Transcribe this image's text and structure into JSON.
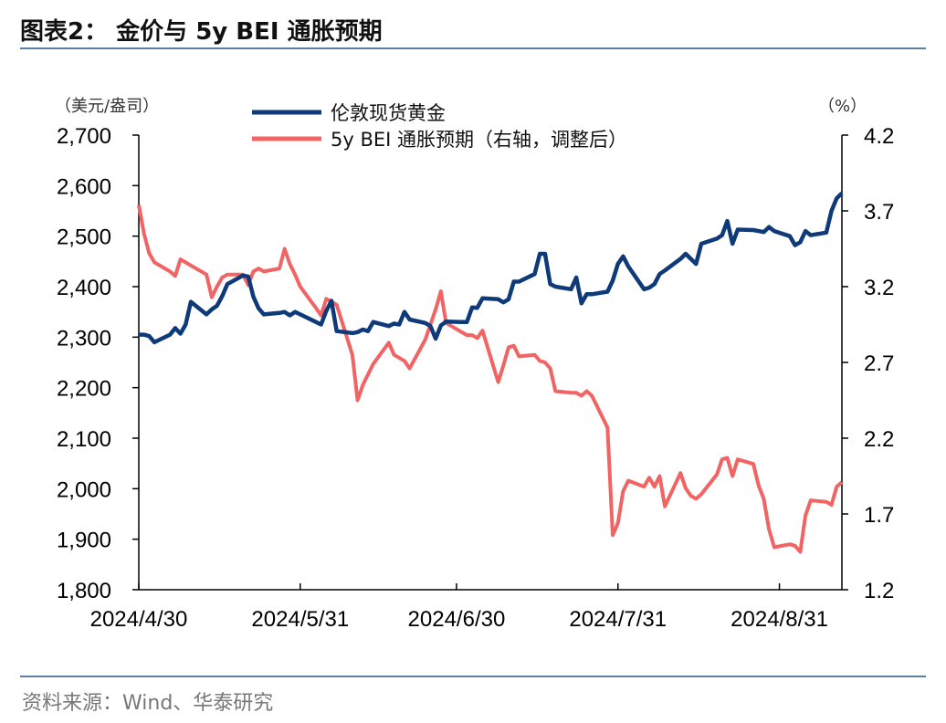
{
  "title": "图表2： 金价与 5y BEI 通胀预期",
  "source": "资料来源：Wind、华泰研究",
  "chart_data": {
    "type": "line",
    "left_unit": "（美元/盎司）",
    "right_unit": "（%）",
    "left_ylim": [
      1800,
      2700
    ],
    "right_ylim": [
      1.2,
      4.2
    ],
    "left_ticks": [
      "2,700",
      "2,600",
      "2,500",
      "2,400",
      "2,300",
      "2,200",
      "2,100",
      "2,000",
      "1,900",
      "1,800"
    ],
    "right_ticks": [
      "4.2",
      "3.7",
      "3.2",
      "2.7",
      "2.2",
      "1.7",
      "1.2"
    ],
    "x_range": [
      "2024-04-30",
      "2024-09-12"
    ],
    "x_ticks": [
      "2024/4/30",
      "2024/5/31",
      "2024/6/30",
      "2024/7/31",
      "2024/8/31"
    ],
    "grid": false,
    "legend_position": "top-center",
    "series": [
      {
        "name": "伦敦现货黄金",
        "axis": "left",
        "color": "#0e3a7a",
        "x": [
          "2024-04-30",
          "2024-05-01",
          "2024-05-02",
          "2024-05-03",
          "2024-05-06",
          "2024-05-07",
          "2024-05-08",
          "2024-05-09",
          "2024-05-10",
          "2024-05-13",
          "2024-05-14",
          "2024-05-15",
          "2024-05-16",
          "2024-05-17",
          "2024-05-20",
          "2024-05-21",
          "2024-05-22",
          "2024-05-23",
          "2024-05-24",
          "2024-05-27",
          "2024-05-28",
          "2024-05-29",
          "2024-05-30",
          "2024-05-31",
          "2024-06-03",
          "2024-06-04",
          "2024-06-05",
          "2024-06-06",
          "2024-06-07",
          "2024-06-10",
          "2024-06-11",
          "2024-06-12",
          "2024-06-13",
          "2024-06-14",
          "2024-06-17",
          "2024-06-18",
          "2024-06-19",
          "2024-06-20",
          "2024-06-21",
          "2024-06-24",
          "2024-06-25",
          "2024-06-26",
          "2024-06-27",
          "2024-06-28",
          "2024-07-01",
          "2024-07-02",
          "2024-07-03",
          "2024-07-04",
          "2024-07-05",
          "2024-07-08",
          "2024-07-09",
          "2024-07-10",
          "2024-07-11",
          "2024-07-12",
          "2024-07-15",
          "2024-07-16",
          "2024-07-17",
          "2024-07-18",
          "2024-07-19",
          "2024-07-22",
          "2024-07-23",
          "2024-07-24",
          "2024-07-25",
          "2024-07-26",
          "2024-07-29",
          "2024-07-30",
          "2024-07-31",
          "2024-08-01",
          "2024-08-02",
          "2024-08-05",
          "2024-08-06",
          "2024-08-07",
          "2024-08-08",
          "2024-08-09",
          "2024-08-12",
          "2024-08-13",
          "2024-08-14",
          "2024-08-15",
          "2024-08-16",
          "2024-08-19",
          "2024-08-20",
          "2024-08-21",
          "2024-08-22",
          "2024-08-23",
          "2024-08-26",
          "2024-08-27",
          "2024-08-28",
          "2024-08-29",
          "2024-08-30",
          "2024-09-02",
          "2024-09-03",
          "2024-09-04",
          "2024-09-05",
          "2024-09-06",
          "2024-09-09",
          "2024-09-10",
          "2024-09-11",
          "2024-09-12"
        ],
        "values": [
          2305,
          2305,
          2302,
          2290,
          2305,
          2318,
          2307,
          2325,
          2370,
          2345,
          2355,
          2362,
          2381,
          2405,
          2422,
          2420,
          2380,
          2357,
          2345,
          2348,
          2350,
          2343,
          2350,
          2345,
          2330,
          2325,
          2352,
          2372,
          2312,
          2308,
          2310,
          2315,
          2312,
          2330,
          2322,
          2327,
          2325,
          2350,
          2335,
          2328,
          2322,
          2297,
          2323,
          2331,
          2330,
          2330,
          2359,
          2358,
          2377,
          2375,
          2369,
          2375,
          2410,
          2410,
          2425,
          2465,
          2465,
          2405,
          2400,
          2395,
          2418,
          2367,
          2385,
          2385,
          2390,
          2412,
          2445,
          2460,
          2440,
          2395,
          2398,
          2405,
          2425,
          2432,
          2455,
          2465,
          2455,
          2445,
          2485,
          2495,
          2502,
          2530,
          2485,
          2513,
          2512,
          2510,
          2508,
          2518,
          2510,
          2500,
          2482,
          2488,
          2510,
          2502,
          2507,
          2550,
          2575,
          2585
        ]
      },
      {
        "name": "5y BEI 通胀预期（右轴，调整后）",
        "axis": "right",
        "color": "#f26464",
        "x": [
          "2024-04-30",
          "2024-05-01",
          "2024-05-02",
          "2024-05-03",
          "2024-05-06",
          "2024-05-07",
          "2024-05-08",
          "2024-05-09",
          "2024-05-10",
          "2024-05-13",
          "2024-05-14",
          "2024-05-15",
          "2024-05-16",
          "2024-05-17",
          "2024-05-20",
          "2024-05-21",
          "2024-05-22",
          "2024-05-23",
          "2024-05-24",
          "2024-05-27",
          "2024-05-28",
          "2024-05-29",
          "2024-05-30",
          "2024-05-31",
          "2024-06-03",
          "2024-06-04",
          "2024-06-05",
          "2024-06-06",
          "2024-06-07",
          "2024-06-10",
          "2024-06-11",
          "2024-06-12",
          "2024-06-13",
          "2024-06-14",
          "2024-06-17",
          "2024-06-18",
          "2024-06-19",
          "2024-06-20",
          "2024-06-21",
          "2024-06-24",
          "2024-06-25",
          "2024-06-26",
          "2024-06-27",
          "2024-06-28",
          "2024-07-01",
          "2024-07-02",
          "2024-07-03",
          "2024-07-04",
          "2024-07-05",
          "2024-07-08",
          "2024-07-09",
          "2024-07-10",
          "2024-07-11",
          "2024-07-12",
          "2024-07-15",
          "2024-07-16",
          "2024-07-17",
          "2024-07-18",
          "2024-07-19",
          "2024-07-22",
          "2024-07-23",
          "2024-07-24",
          "2024-07-25",
          "2024-07-26",
          "2024-07-29",
          "2024-07-30",
          "2024-07-31",
          "2024-08-01",
          "2024-08-02",
          "2024-08-05",
          "2024-08-06",
          "2024-08-07",
          "2024-08-08",
          "2024-08-09",
          "2024-08-12",
          "2024-08-13",
          "2024-08-14",
          "2024-08-15",
          "2024-08-16",
          "2024-08-19",
          "2024-08-20",
          "2024-08-21",
          "2024-08-22",
          "2024-08-23",
          "2024-08-26",
          "2024-08-27",
          "2024-08-28",
          "2024-08-29",
          "2024-08-30",
          "2024-09-02",
          "2024-09-03",
          "2024-09-04",
          "2024-09-05",
          "2024-09-06",
          "2024-09-09",
          "2024-09-10",
          "2024-09-11",
          "2024-09-12"
        ],
        "values": [
          3.74,
          3.55,
          3.42,
          3.36,
          3.3,
          3.27,
          3.38,
          3.36,
          3.34,
          3.28,
          3.13,
          3.2,
          3.26,
          3.28,
          3.28,
          3.21,
          3.3,
          3.32,
          3.3,
          3.32,
          3.45,
          3.35,
          3.28,
          3.2,
          3.06,
          3.01,
          3.12,
          3.1,
          3.08,
          2.75,
          2.45,
          2.55,
          2.62,
          2.69,
          2.83,
          2.75,
          2.73,
          2.71,
          2.66,
          2.85,
          2.95,
          3.05,
          3.17,
          2.96,
          2.9,
          2.88,
          2.88,
          2.86,
          2.91,
          2.57,
          2.68,
          2.8,
          2.81,
          2.74,
          2.75,
          2.71,
          2.7,
          2.66,
          2.51,
          2.5,
          2.5,
          2.48,
          2.51,
          2.48,
          2.27,
          1.56,
          1.64,
          1.85,
          1.92,
          1.88,
          1.94,
          1.88,
          1.95,
          1.75,
          1.97,
          1.87,
          1.82,
          1.8,
          1.83,
          1.96,
          2.06,
          2.07,
          1.95,
          2.06,
          2.03,
          1.89,
          1.8,
          1.6,
          1.48,
          1.5,
          1.49,
          1.45,
          1.69,
          1.79,
          1.78,
          1.76,
          1.88,
          1.91
        ]
      }
    ]
  }
}
